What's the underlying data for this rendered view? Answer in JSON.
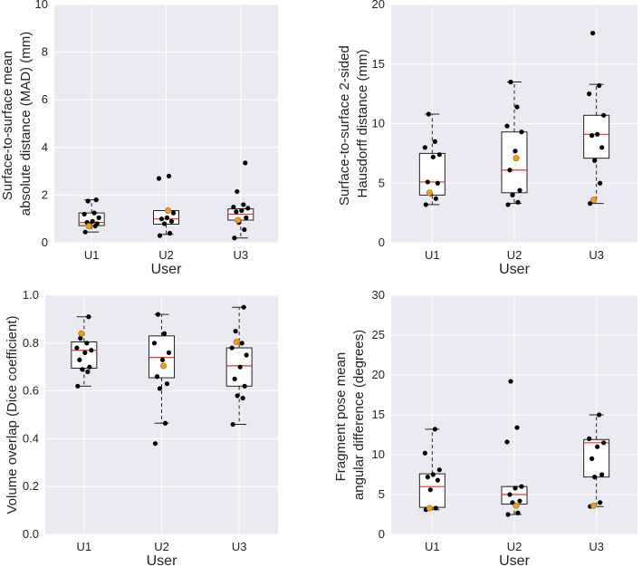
{
  "colors": {
    "panel_bg": "#eaeaf2",
    "grid": "#ffffff",
    "box_fill": "#ffffff",
    "box_edge": "#222222",
    "median": "#e8322c",
    "point": "#000000",
    "highlight": "#f29c1f"
  },
  "chart_data": [
    {
      "type": "box",
      "title": "",
      "xlabel": "User",
      "ylabel": [
        "Surface-to-surface mean",
        "absolute distance (MAD) (mm)"
      ],
      "categories": [
        "U1",
        "U2",
        "U3"
      ],
      "ylim": [
        0,
        10
      ],
      "yticks": [
        0,
        2,
        4,
        6,
        8,
        10
      ],
      "ytick_labels": [
        "0",
        "2",
        "4",
        "6",
        "8",
        "10"
      ],
      "boxes": [
        {
          "whislo": 0.45,
          "q1": 0.72,
          "med": 0.85,
          "q3": 1.25,
          "whishi": 1.8
        },
        {
          "whislo": 0.35,
          "q1": 0.78,
          "med": 1.0,
          "q3": 1.35,
          "whishi": 1.35
        },
        {
          "whislo": 0.2,
          "q1": 0.95,
          "med": 1.2,
          "q3": 1.42,
          "whishi": 1.42
        }
      ],
      "points": [
        [
          0.45,
          0.7,
          0.75,
          0.8,
          0.85,
          0.9,
          1.05,
          1.2,
          1.25,
          1.75,
          1.8
        ],
        [
          0.3,
          0.4,
          0.8,
          0.9,
          1.0,
          1.05,
          1.25,
          2.7,
          2.8
        ],
        [
          0.2,
          0.55,
          0.85,
          1.05,
          1.3,
          1.35,
          1.45,
          1.5,
          1.6,
          2.15,
          3.35
        ]
      ],
      "highlight": [
        0.7,
        1.35,
        0.95
      ]
    },
    {
      "type": "box",
      "title": "",
      "xlabel": "User",
      "ylabel": [
        "Surface-to-surface 2-sided",
        "Hausdorff distance (mm)"
      ],
      "categories": [
        "U1",
        "U2",
        "U3"
      ],
      "ylim": [
        0,
        20
      ],
      "yticks": [
        0,
        5,
        10,
        15,
        20
      ],
      "ytick_labels": [
        "0",
        "5",
        "10",
        "15",
        "20"
      ],
      "boxes": [
        {
          "whislo": 3.2,
          "q1": 4.0,
          "med": 5.1,
          "q3": 7.5,
          "whishi": 10.8
        },
        {
          "whislo": 3.3,
          "q1": 4.2,
          "med": 6.1,
          "q3": 9.3,
          "whishi": 13.5
        },
        {
          "whislo": 3.3,
          "q1": 7.1,
          "med": 9.1,
          "q3": 10.7,
          "whishi": 13.3
        }
      ],
      "points": [
        [
          3.2,
          3.7,
          4.1,
          5.0,
          5.1,
          7.2,
          7.4,
          8.0,
          8.5,
          10.8
        ],
        [
          3.2,
          3.4,
          4.0,
          4.4,
          6.1,
          7.7,
          9.3,
          9.8,
          11.4,
          13.5
        ],
        [
          3.3,
          5.0,
          6.9,
          8.0,
          9.0,
          9.1,
          10.7,
          12.5,
          13.2,
          17.6
        ]
      ],
      "highlight": [
        4.2,
        7.1,
        3.6
      ]
    },
    {
      "type": "box",
      "title": "",
      "xlabel": "User",
      "ylabel": [
        "Volume overlap (Dice coefficient)"
      ],
      "categories": [
        "U1",
        "U2",
        "U3"
      ],
      "ylim": [
        0.0,
        1.0
      ],
      "yticks": [
        0.0,
        0.2,
        0.4,
        0.6,
        0.8,
        1.0
      ],
      "ytick_labels": [
        "0.0",
        "0.2",
        "0.4",
        "0.6",
        "0.8",
        "1.0"
      ],
      "boxes": [
        {
          "whislo": 0.62,
          "q1": 0.695,
          "med": 0.77,
          "q3": 0.805,
          "whishi": 0.91
        },
        {
          "whislo": 0.465,
          "q1": 0.655,
          "med": 0.74,
          "q3": 0.83,
          "whishi": 0.92
        },
        {
          "whislo": 0.46,
          "q1": 0.62,
          "med": 0.705,
          "q3": 0.78,
          "whishi": 0.95
        }
      ],
      "points": [
        [
          0.62,
          0.68,
          0.69,
          0.7,
          0.73,
          0.76,
          0.77,
          0.78,
          0.8,
          0.82,
          0.91
        ],
        [
          0.38,
          0.465,
          0.61,
          0.63,
          0.66,
          0.73,
          0.76,
          0.8,
          0.84,
          0.92
        ],
        [
          0.46,
          0.57,
          0.58,
          0.62,
          0.65,
          0.7,
          0.75,
          0.78,
          0.8,
          0.85,
          0.95
        ]
      ],
      "highlight": [
        0.84,
        0.705,
        0.805
      ]
    },
    {
      "type": "box",
      "title": "",
      "xlabel": "User",
      "ylabel": [
        "Fragment pose mean",
        "angular difference (degrees)"
      ],
      "categories": [
        "U1",
        "U2",
        "U3"
      ],
      "ylim": [
        0,
        30
      ],
      "yticks": [
        0,
        5,
        10,
        15,
        20,
        25,
        30
      ],
      "ytick_labels": [
        "0",
        "5",
        "10",
        "15",
        "20",
        "25",
        "30"
      ],
      "boxes": [
        {
          "whislo": 3.1,
          "q1": 3.4,
          "med": 6.0,
          "q3": 7.6,
          "whishi": 13.2
        },
        {
          "whislo": 2.5,
          "q1": 3.8,
          "med": 5.0,
          "q3": 6.0,
          "whishi": 6.0
        },
        {
          "whislo": 3.5,
          "q1": 7.2,
          "med": 11.5,
          "q3": 11.9,
          "whishi": 15.0
        }
      ],
      "points": [
        [
          3.1,
          3.3,
          5.6,
          6.8,
          7.2,
          7.5,
          8.1,
          10.2,
          13.2
        ],
        [
          2.5,
          2.7,
          4.0,
          4.2,
          5.0,
          5.8,
          6.0,
          11.6,
          13.4,
          19.2
        ],
        [
          3.5,
          4.0,
          7.2,
          7.5,
          9.5,
          11.0,
          11.5,
          12.0,
          15.0
        ]
      ],
      "highlight": [
        3.3,
        3.6,
        3.6
      ]
    }
  ]
}
